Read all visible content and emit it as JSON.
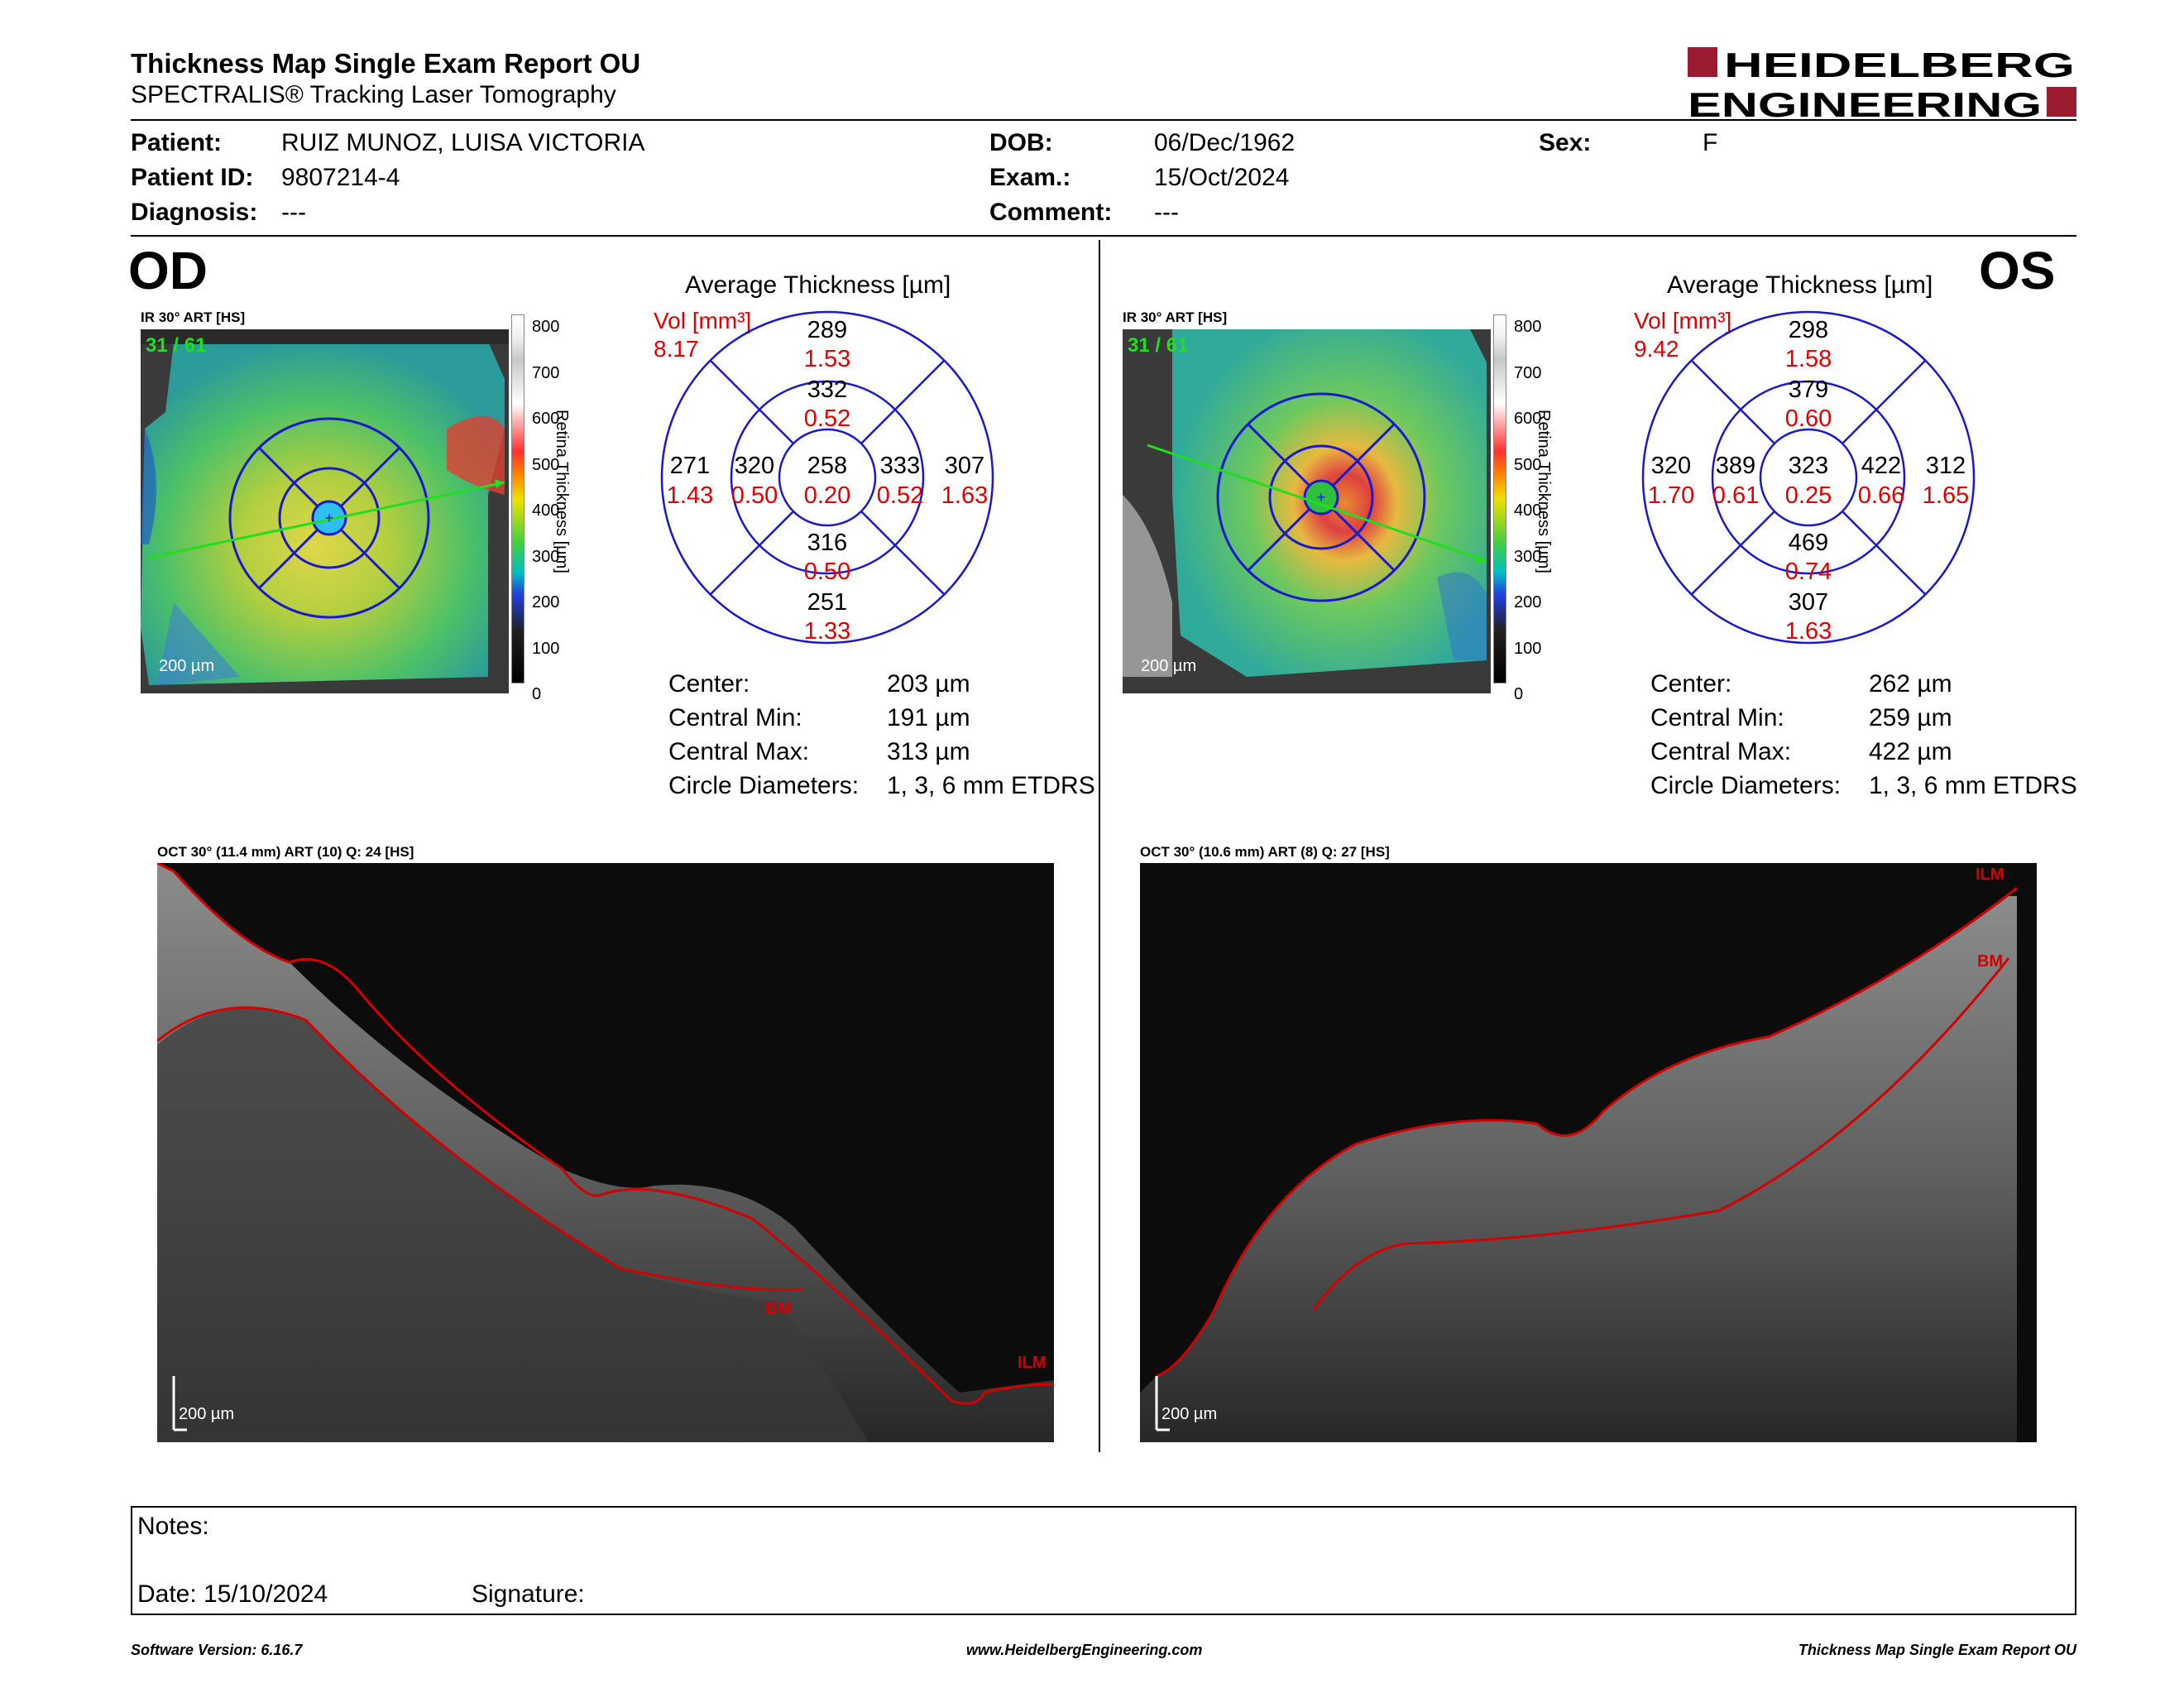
{
  "header": {
    "title": "Thickness Map Single Exam Report OU",
    "subtitle": "SPECTRALIS® Tracking Laser Tomography",
    "logo_line1": "HEIDELBERG",
    "logo_line2": "ENGINEERING"
  },
  "patient": {
    "patient_label": "Patient:",
    "patient_value": "RUIZ MUNOZ, LUISA VICTORIA",
    "patient_id_label": "Patient ID:",
    "patient_id_value": "9807214-4",
    "diagnosis_label": "Diagnosis:",
    "diagnosis_value": "---",
    "dob_label": "DOB:",
    "dob_value": "06/Dec/1962",
    "exam_label": "Exam.:",
    "exam_value": "15/Oct/2024",
    "comment_label": "Comment:",
    "comment_value": "---",
    "sex_label": "Sex:",
    "sex_value": "F"
  },
  "od": {
    "eye": "OD",
    "ir_label": "IR 30° ART [HS]",
    "frame_count": "31 / 61",
    "scale_bar": "200 µm",
    "colorbar_ticks": [
      "800",
      "700",
      "600",
      "500",
      "400",
      "300",
      "200",
      "100",
      "0"
    ],
    "colorbar_title": "Retina Thickness [µm]",
    "avg_title": "Average Thickness [µm]",
    "vol_label": "Vol [mm³]",
    "vol_value": "8.17",
    "grid": {
      "center": {
        "t": "258",
        "v": "0.20"
      },
      "inner_sup": {
        "t": "332",
        "v": "0.52"
      },
      "inner_inf": {
        "t": "316",
        "v": "0.50"
      },
      "inner_left": {
        "t": "320",
        "v": "0.50"
      },
      "inner_right": {
        "t": "333",
        "v": "0.52"
      },
      "outer_sup": {
        "t": "289",
        "v": "1.53"
      },
      "outer_inf": {
        "t": "251",
        "v": "1.33"
      },
      "outer_left": {
        "t": "271",
        "v": "1.43"
      },
      "outer_right": {
        "t": "307",
        "v": "1.63"
      }
    },
    "stats": [
      {
        "label": "Center:",
        "value": "203 µm"
      },
      {
        "label": "Central Min:",
        "value": "191 µm"
      },
      {
        "label": "Central Max:",
        "value": "313 µm"
      },
      {
        "label": "Circle Diameters:",
        "value": "1, 3, 6 mm ETDRS"
      }
    ],
    "oct_label": "OCT 30° (11.4 mm) ART (10) Q: 24 [HS]",
    "oct_scale": "200 µm",
    "seg_labels": [
      "BM",
      "ILM"
    ]
  },
  "os": {
    "eye": "OS",
    "ir_label": "IR 30° ART [HS]",
    "frame_count": "31 / 61",
    "scale_bar": "200 µm",
    "colorbar_ticks": [
      "800",
      "700",
      "600",
      "500",
      "400",
      "300",
      "200",
      "100",
      "0"
    ],
    "colorbar_title": "Retina Thickness [µm]",
    "avg_title": "Average Thickness [µm]",
    "vol_label": "Vol [mm³]",
    "vol_value": "9.42",
    "grid": {
      "center": {
        "t": "323",
        "v": "0.25"
      },
      "inner_sup": {
        "t": "379",
        "v": "0.60"
      },
      "inner_inf": {
        "t": "469",
        "v": "0.74"
      },
      "inner_left": {
        "t": "389",
        "v": "0.61"
      },
      "inner_right": {
        "t": "422",
        "v": "0.66"
      },
      "outer_sup": {
        "t": "298",
        "v": "1.58"
      },
      "outer_inf": {
        "t": "307",
        "v": "1.63"
      },
      "outer_left": {
        "t": "320",
        "v": "1.70"
      },
      "outer_right": {
        "t": "312",
        "v": "1.65"
      }
    },
    "stats": [
      {
        "label": "Center:",
        "value": "262 µm"
      },
      {
        "label": "Central Min:",
        "value": "259 µm"
      },
      {
        "label": "Central Max:",
        "value": "422 µm"
      },
      {
        "label": "Circle Diameters:",
        "value": "1, 3, 6 mm ETDRS"
      }
    ],
    "oct_label": "OCT 30° (10.6 mm) ART (8) Q: 27 [HS]",
    "oct_scale": "200 µm",
    "seg_labels": [
      "ILM",
      "BM"
    ]
  },
  "notes": {
    "notes_label": "Notes:",
    "date_label": "Date: 15/10/2024",
    "signature_label": "Signature:"
  },
  "footer": {
    "software": "Software Version: 6.16.7",
    "website": "www.HeidelbergEngineering.com",
    "report": "Thickness Map Single Exam Report OU"
  },
  "colors": {
    "grid_blue": "#1a1acc",
    "vol_red": "#e00000",
    "seg_red": "#d40000",
    "logo_red": "#9b1b30",
    "frame_green": "#22dd22"
  }
}
